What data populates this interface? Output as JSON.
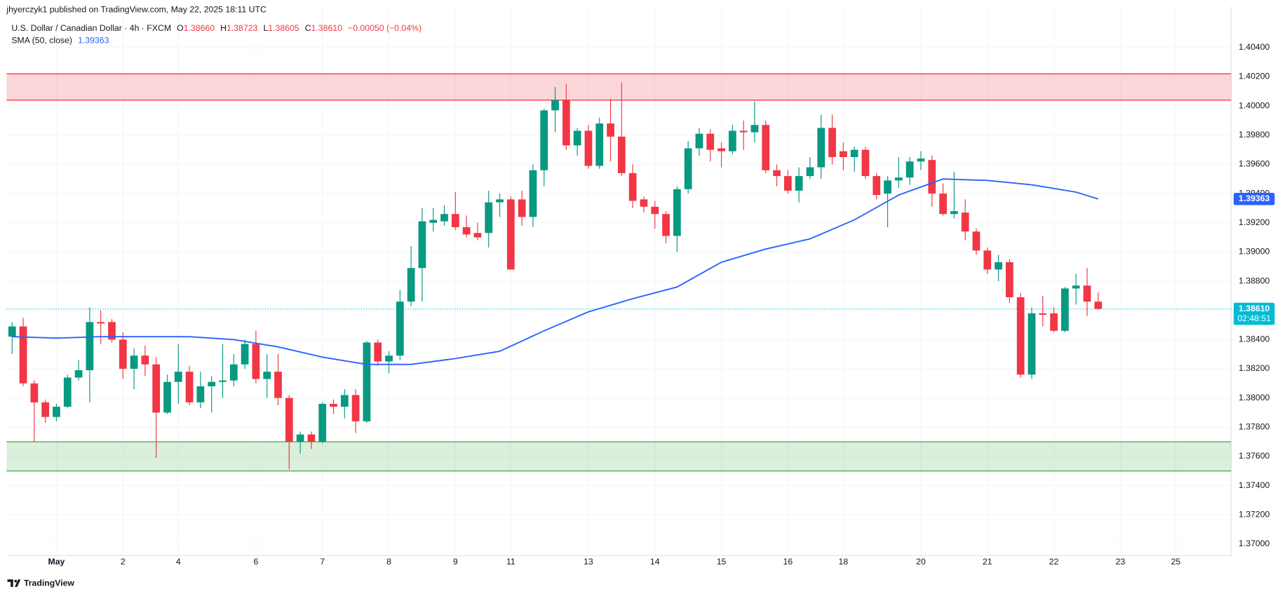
{
  "header": {
    "publisher": "jhyerczyk1 published on TradingView.com, May 22, 2025 18:11 UTC",
    "symbol": "U.S. Dollar / Canadian Dollar · 4h · FXCM",
    "ohlc": [
      {
        "key": "O",
        "value": "1.38660"
      },
      {
        "key": "H",
        "value": "1.38723"
      },
      {
        "key": "L",
        "value": "1.38605"
      },
      {
        "key": "C",
        "value": "1.38610"
      }
    ],
    "change": "−0.00050 (−0.04%)"
  },
  "footer": {
    "brand": "TradingView"
  },
  "chart_data": {
    "type": "candlestick",
    "up_color": "#089981",
    "down_color": "#f23645",
    "open": [
      1.3842,
      1.3849,
      1.381,
      1.3797,
      1.3787,
      1.3794,
      1.3814,
      1.3819,
      1.3852,
      1.3852,
      1.384,
      1.382,
      1.3829,
      1.3823,
      1.379,
      1.3811,
      1.3818,
      1.3797,
      1.3808,
      1.3811,
      1.3812,
      1.3823,
      1.3837,
      1.3813,
      1.3818,
      1.38,
      1.377,
      1.3775,
      1.377,
      1.3796,
      1.3794,
      1.3802,
      1.3784,
      1.3838,
      1.3825,
      1.3829,
      1.3866,
      1.3889,
      1.392,
      1.3921,
      1.3926,
      1.3917,
      1.3913,
      1.3913,
      1.3934,
      1.3936,
      1.3936,
      1.3924,
      1.3956,
      1.3997,
      1.4004,
      1.3973,
      1.3983,
      1.3959,
      1.3988,
      1.3979,
      1.3954,
      1.3936,
      1.3931,
      1.3926,
      1.3911,
      1.3943,
      1.3971,
      1.3981,
      1.3971,
      1.3969,
      1.3983,
      1.3982,
      1.3987,
      1.3956,
      1.3952,
      1.3942,
      1.3952,
      1.3958,
      1.3985,
      1.3969,
      1.3965,
      1.397,
      1.3952,
      1.394,
      1.3949,
      1.3951,
      1.3962,
      1.3963,
      1.394,
      1.3926,
      1.3927,
      1.3914,
      1.3901,
      1.3888,
      1.3893,
      1.3869,
      1.3816,
      1.3858,
      1.3858,
      1.3846,
      1.3875,
      1.3877,
      1.3866
    ],
    "high": [
      1.3852,
      1.3855,
      1.3812,
      1.3799,
      1.3796,
      1.3816,
      1.3826,
      1.3862,
      1.386,
      1.3854,
      1.3845,
      1.3834,
      1.3836,
      1.3828,
      1.3816,
      1.3837,
      1.3822,
      1.3818,
      1.3815,
      1.3837,
      1.383,
      1.384,
      1.3846,
      1.383,
      1.383,
      1.3802,
      1.3777,
      1.3777,
      1.3797,
      1.3799,
      1.3806,
      1.3806,
      1.3839,
      1.384,
      1.3832,
      1.3874,
      1.3904,
      1.393,
      1.393,
      1.3932,
      1.3941,
      1.3925,
      1.392,
      1.3942,
      1.394,
      1.3938,
      1.3942,
      1.396,
      1.3998,
      1.4013,
      1.4015,
      1.3985,
      1.3987,
      1.3992,
      1.4005,
      1.4016,
      1.396,
      1.3938,
      1.3935,
      1.3928,
      1.3945,
      1.3976,
      1.3985,
      1.3984,
      1.3975,
      1.3987,
      1.399,
      1.4003,
      1.399,
      1.396,
      1.3956,
      1.3958,
      1.3965,
      1.3994,
      1.3994,
      1.3975,
      1.3972,
      1.3972,
      1.3954,
      1.3952,
      1.3965,
      1.3965,
      1.3969,
      1.3966,
      1.3947,
      1.3955,
      1.3936,
      1.3916,
      1.3903,
      1.3898,
      1.3895,
      1.3872,
      1.3862,
      1.387,
      1.3862,
      1.3876,
      1.3885,
      1.3889,
      1.38723
    ],
    "low": [
      1.383,
      1.3808,
      1.377,
      1.3783,
      1.3784,
      1.3793,
      1.3812,
      1.3797,
      1.3837,
      1.3838,
      1.3813,
      1.3806,
      1.3815,
      1.3759,
      1.3789,
      1.3796,
      1.3795,
      1.3793,
      1.379,
      1.38,
      1.3808,
      1.382,
      1.381,
      1.38,
      1.3795,
      1.3751,
      1.3762,
      1.3765,
      1.3769,
      1.3789,
      1.3786,
      1.3776,
      1.3783,
      1.3822,
      1.3817,
      1.3826,
      1.3863,
      1.3866,
      1.3914,
      1.3918,
      1.3915,
      1.391,
      1.3908,
      1.3903,
      1.3924,
      1.3888,
      1.3918,
      1.3917,
      1.3945,
      1.3982,
      1.397,
      1.3966,
      1.3957,
      1.3957,
      1.3962,
      1.3952,
      1.393,
      1.3927,
      1.3916,
      1.3906,
      1.39,
      1.394,
      1.3966,
      1.3962,
      1.3958,
      1.3967,
      1.397,
      1.3975,
      1.3954,
      1.3945,
      1.394,
      1.3934,
      1.395,
      1.395,
      1.396,
      1.3956,
      1.3955,
      1.395,
      1.3936,
      1.3917,
      1.3944,
      1.3946,
      1.3956,
      1.3931,
      1.3925,
      1.3923,
      1.3908,
      1.3898,
      1.3885,
      1.388,
      1.3865,
      1.3814,
      1.3813,
      1.3849,
      1.3845,
      1.3845,
      1.3864,
      1.3856,
      1.38605
    ],
    "close": [
      1.3849,
      1.381,
      1.3797,
      1.3787,
      1.3794,
      1.3814,
      1.3819,
      1.3852,
      1.3851,
      1.384,
      1.382,
      1.3829,
      1.3823,
      1.379,
      1.3811,
      1.3818,
      1.3797,
      1.3808,
      1.3811,
      1.3812,
      1.3823,
      1.3837,
      1.3813,
      1.3818,
      1.38,
      1.377,
      1.3775,
      1.377,
      1.3796,
      1.3794,
      1.3802,
      1.3784,
      1.3838,
      1.3825,
      1.3829,
      1.3866,
      1.3889,
      1.3921,
      1.3922,
      1.3926,
      1.3917,
      1.3912,
      1.391,
      1.3934,
      1.3936,
      1.3888,
      1.3924,
      1.3956,
      1.3997,
      1.4004,
      1.3973,
      1.3983,
      1.3959,
      1.3988,
      1.3979,
      1.3954,
      1.3935,
      1.3931,
      1.3926,
      1.3911,
      1.3943,
      1.3971,
      1.3981,
      1.397,
      1.3969,
      1.3983,
      1.3982,
      1.3987,
      1.3956,
      1.3952,
      1.3942,
      1.3952,
      1.3958,
      1.3985,
      1.3965,
      1.3965,
      1.397,
      1.3952,
      1.3939,
      1.3949,
      1.3951,
      1.3962,
      1.3964,
      1.394,
      1.3926,
      1.3928,
      1.3914,
      1.3901,
      1.3888,
      1.3893,
      1.3869,
      1.3816,
      1.3858,
      1.3857,
      1.3846,
      1.3875,
      1.3877,
      1.3866,
      1.3861
    ],
    "sma": {
      "name": "SMA (50, close)",
      "color": "#2962ff",
      "last_label": "1.39363",
      "x": [
        0,
        4,
        8,
        12,
        16,
        20,
        24,
        28,
        32,
        36,
        40,
        44,
        48,
        52,
        56,
        60,
        64,
        68,
        72,
        76,
        80,
        84,
        88,
        92,
        96,
        98
      ],
      "values": [
        1.3842,
        1.3841,
        1.3842,
        1.3842,
        1.3842,
        1.384,
        1.3835,
        1.3828,
        1.3823,
        1.3823,
        1.3827,
        1.3832,
        1.3846,
        1.3859,
        1.3868,
        1.3876,
        1.3893,
        1.3902,
        1.3909,
        1.3922,
        1.3939,
        1.395,
        1.3949,
        1.3946,
        1.3941,
        1.39363
      ]
    },
    "zones": [
      {
        "from": 1.4004,
        "to": 1.4022,
        "color": "#f23645"
      },
      {
        "from": 1.375,
        "to": 1.377,
        "color": "#4caf50"
      }
    ],
    "last_price": {
      "value": 1.3861,
      "label": "1.38610",
      "countdown": "02:48:51",
      "color": "#00bcd4"
    },
    "xlim": [
      -0.5,
      110
    ],
    "xticks": [
      {
        "value": 4,
        "label": "May"
      },
      {
        "value": 10,
        "label": "2"
      },
      {
        "value": 15,
        "label": "4"
      },
      {
        "value": 22,
        "label": "6"
      },
      {
        "value": 28,
        "label": "7"
      },
      {
        "value": 34,
        "label": "8"
      },
      {
        "value": 40,
        "label": "9"
      },
      {
        "value": 45,
        "label": "11"
      },
      {
        "value": 52,
        "label": "13"
      },
      {
        "value": 58,
        "label": "14"
      },
      {
        "value": 64,
        "label": "15"
      },
      {
        "value": 70,
        "label": "16"
      },
      {
        "value": 75,
        "label": "18"
      },
      {
        "value": 82,
        "label": "20"
      },
      {
        "value": 88,
        "label": "21"
      },
      {
        "value": 94,
        "label": "22"
      },
      {
        "value": 100,
        "label": "23"
      },
      {
        "value": 105,
        "label": "25"
      }
    ],
    "ylim": [
      1.3692,
      1.4068
    ],
    "yticks": [
      {
        "value": 1.37,
        "label": "1.37000"
      },
      {
        "value": 1.372,
        "label": "1.37200"
      },
      {
        "value": 1.374,
        "label": "1.37400"
      },
      {
        "value": 1.376,
        "label": "1.37600"
      },
      {
        "value": 1.378,
        "label": "1.37800"
      },
      {
        "value": 1.38,
        "label": "1.38000"
      },
      {
        "value": 1.382,
        "label": "1.38200"
      },
      {
        "value": 1.384,
        "label": "1.38400"
      },
      {
        "value": 1.386,
        "label": "1.38600"
      },
      {
        "value": 1.388,
        "label": "1.38800"
      },
      {
        "value": 1.39,
        "label": "1.39000"
      },
      {
        "value": 1.392,
        "label": "1.39200"
      },
      {
        "value": 1.394,
        "label": "1.39400"
      },
      {
        "value": 1.396,
        "label": "1.39600"
      },
      {
        "value": 1.398,
        "label": "1.39800"
      },
      {
        "value": 1.4,
        "label": "1.40000"
      },
      {
        "value": 1.402,
        "label": "1.40200"
      },
      {
        "value": 1.404,
        "label": "1.40400"
      }
    ],
    "grid": true
  }
}
